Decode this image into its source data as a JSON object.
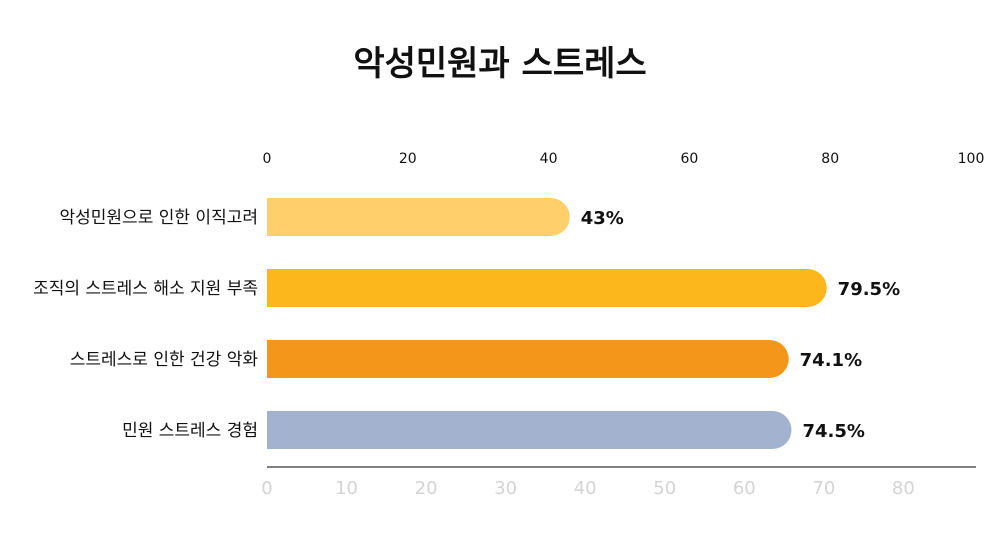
{
  "chart_data": {
    "type": "bar",
    "orientation": "horizontal",
    "title": "악성민원과 스트레스",
    "categories": [
      "악성민원으로 인한 이직고려",
      "조직의 스트레스 해소 지원 부족",
      "스트레스로 인한 건강 악화",
      "민원 스트레스 경험"
    ],
    "values": [
      43,
      79.5,
      74.1,
      74.5
    ],
    "value_labels": [
      "43%",
      "79.5%",
      "74.1%",
      "74.5%"
    ],
    "bar_colors": [
      "#FECF6B",
      "#FBB71C",
      "#F39619",
      "#A3B3CF"
    ],
    "top_axis": {
      "ticks": [
        "0",
        "20",
        "40",
        "60",
        "80",
        "100"
      ],
      "range": [
        0,
        100
      ]
    },
    "bottom_axis": {
      "ticks": [
        "0",
        "10",
        "20",
        "30",
        "40",
        "50",
        "60",
        "70",
        "80"
      ],
      "range": [
        0,
        88.5
      ]
    },
    "grid": false,
    "legend": "none"
  }
}
